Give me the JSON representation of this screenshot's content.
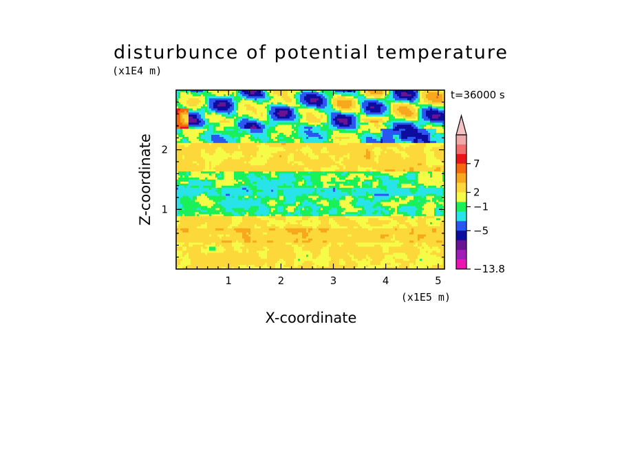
{
  "chart_data": {
    "type": "heatmap",
    "title": "disturbunce of potential temperature",
    "time_label": "t=36000 s",
    "xlabel": "X-coordinate",
    "ylabel": "Z-coordinate",
    "x_unit": "(x1E5 m)",
    "y_unit": "(x1E4 m)",
    "xlim": [
      0,
      5.12
    ],
    "ylim": [
      0,
      3.0
    ],
    "x_ticks": [
      {
        "value": 1,
        "label": "1"
      },
      {
        "value": 2,
        "label": "2"
      },
      {
        "value": 3,
        "label": "3"
      },
      {
        "value": 4,
        "label": "4"
      },
      {
        "value": 5,
        "label": "5"
      }
    ],
    "y_ticks": [
      {
        "value": 1,
        "label": "1"
      },
      {
        "value": 2,
        "label": "2"
      }
    ],
    "colorbar": {
      "labels": [
        {
          "value": 7,
          "label": "7"
        },
        {
          "value": 2,
          "label": "2"
        },
        {
          "value": -1,
          "label": "−1"
        },
        {
          "value": -5,
          "label": "−5"
        },
        {
          "value": -13.8,
          "label": "−13.8"
        }
      ],
      "bins": [
        {
          "color": "#f0a9a9"
        },
        {
          "color": "#f26d6d"
        },
        {
          "color": "#e8151b"
        },
        {
          "color": "#f5680c"
        },
        {
          "color": "#f7a81c"
        },
        {
          "color": "#fcd83b"
        },
        {
          "color": "#f6fb47"
        },
        {
          "color": "#19f05a"
        },
        {
          "color": "#28e4e8"
        },
        {
          "color": "#2c56f2"
        },
        {
          "color": "#0d0c9e"
        },
        {
          "color": "#6a1492"
        },
        {
          "color": "#a01db8"
        },
        {
          "color": "#ec14b0"
        }
      ],
      "extend_top_color": "#f4c2c2"
    },
    "field_description_levels": [
      {
        "z_from": 0.0,
        "z_to": 0.9,
        "dominant": "#f6fb47",
        "secondary": "#fcd83b"
      },
      {
        "z_from": 0.9,
        "z_to": 1.6,
        "dominant": "#19f05a",
        "secondary": "#f6fb47"
      },
      {
        "z_from": 1.6,
        "z_to": 2.1,
        "dominant": "#f6fb47",
        "secondary": "#19f05a"
      },
      {
        "z_from": 2.1,
        "z_to": 3.0,
        "dominant": "#19f05a",
        "secondary": "#2c56f2"
      }
    ]
  }
}
